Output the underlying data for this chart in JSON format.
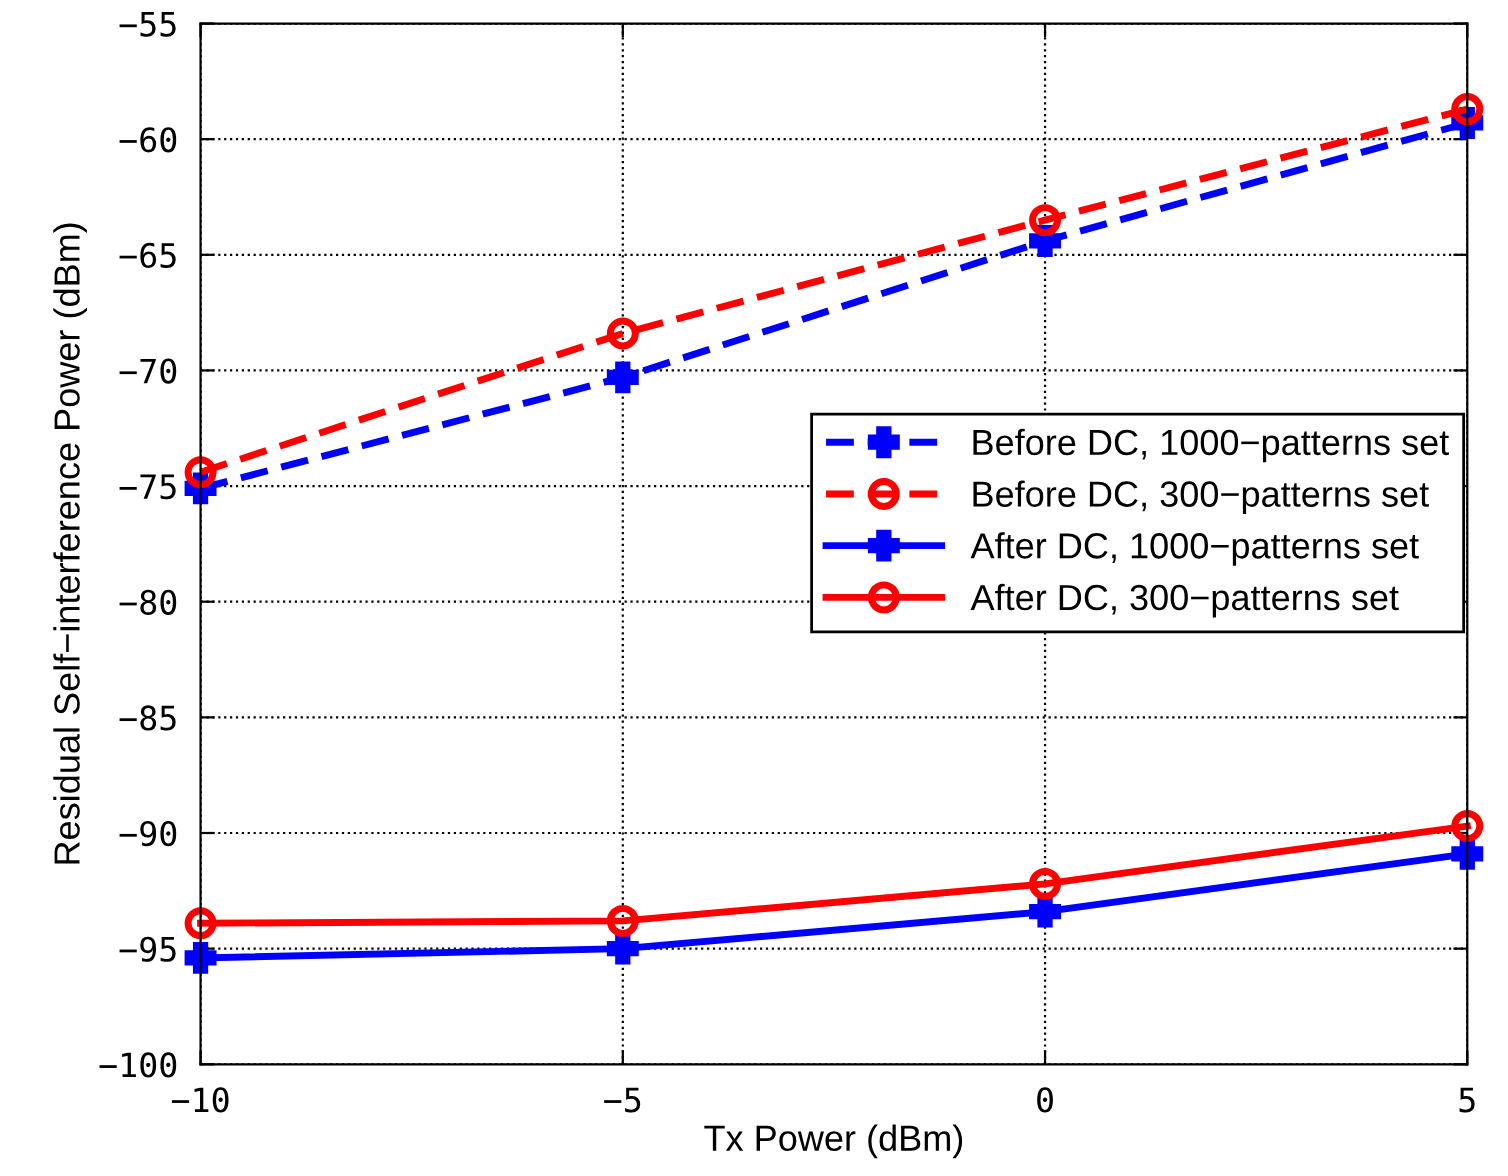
{
  "chart_data": {
    "type": "line",
    "xlabel": "Tx Power (dBm)",
    "ylabel": "Residual Self−interference Power (dBm)",
    "x": [
      -10,
      -5,
      0,
      5
    ],
    "series": [
      {
        "name": "Before DC, 1000−patterns set",
        "color": "#0000ff",
        "values": [
          -75.1,
          -70.3,
          -64.4,
          -59.3
        ],
        "line_style": "dashed",
        "marker": "cross"
      },
      {
        "name": "Before DC, 300−patterns set",
        "color": "#ff0000",
        "values": [
          -74.4,
          -68.4,
          -63.5,
          -58.7
        ],
        "line_style": "dashed",
        "marker": "circle"
      },
      {
        "name": "After DC, 1000−patterns set",
        "color": "#0000ff",
        "values": [
          -95.4,
          -95.0,
          -93.4,
          -90.9
        ],
        "line_style": "solid",
        "marker": "cross"
      },
      {
        "name": "After DC, 300−patterns set",
        "color": "#ff0000",
        "values": [
          -93.9,
          -93.8,
          -92.2,
          -89.7
        ],
        "line_style": "solid",
        "marker": "circle"
      }
    ],
    "xlim": [
      -10,
      5
    ],
    "ylim": [
      -100,
      -55
    ],
    "xticks": [
      {
        "value": -10,
        "label": "−10"
      },
      {
        "value": -5,
        "label": "−5"
      },
      0,
      5
    ],
    "yticks": [
      {
        "value": -100,
        "label": "−100"
      },
      {
        "value": -95,
        "label": "−95"
      },
      {
        "value": -90,
        "label": "−90"
      },
      {
        "value": -85,
        "label": "−85"
      },
      {
        "value": -80,
        "label": "−80"
      },
      {
        "value": -75,
        "label": "−75"
      },
      {
        "value": -70,
        "label": "−70"
      },
      {
        "value": -65,
        "label": "−65"
      },
      {
        "value": -60,
        "label": "−60"
      },
      {
        "value": -55,
        "label": "−55"
      }
    ],
    "grid": true,
    "legend": "right"
  }
}
